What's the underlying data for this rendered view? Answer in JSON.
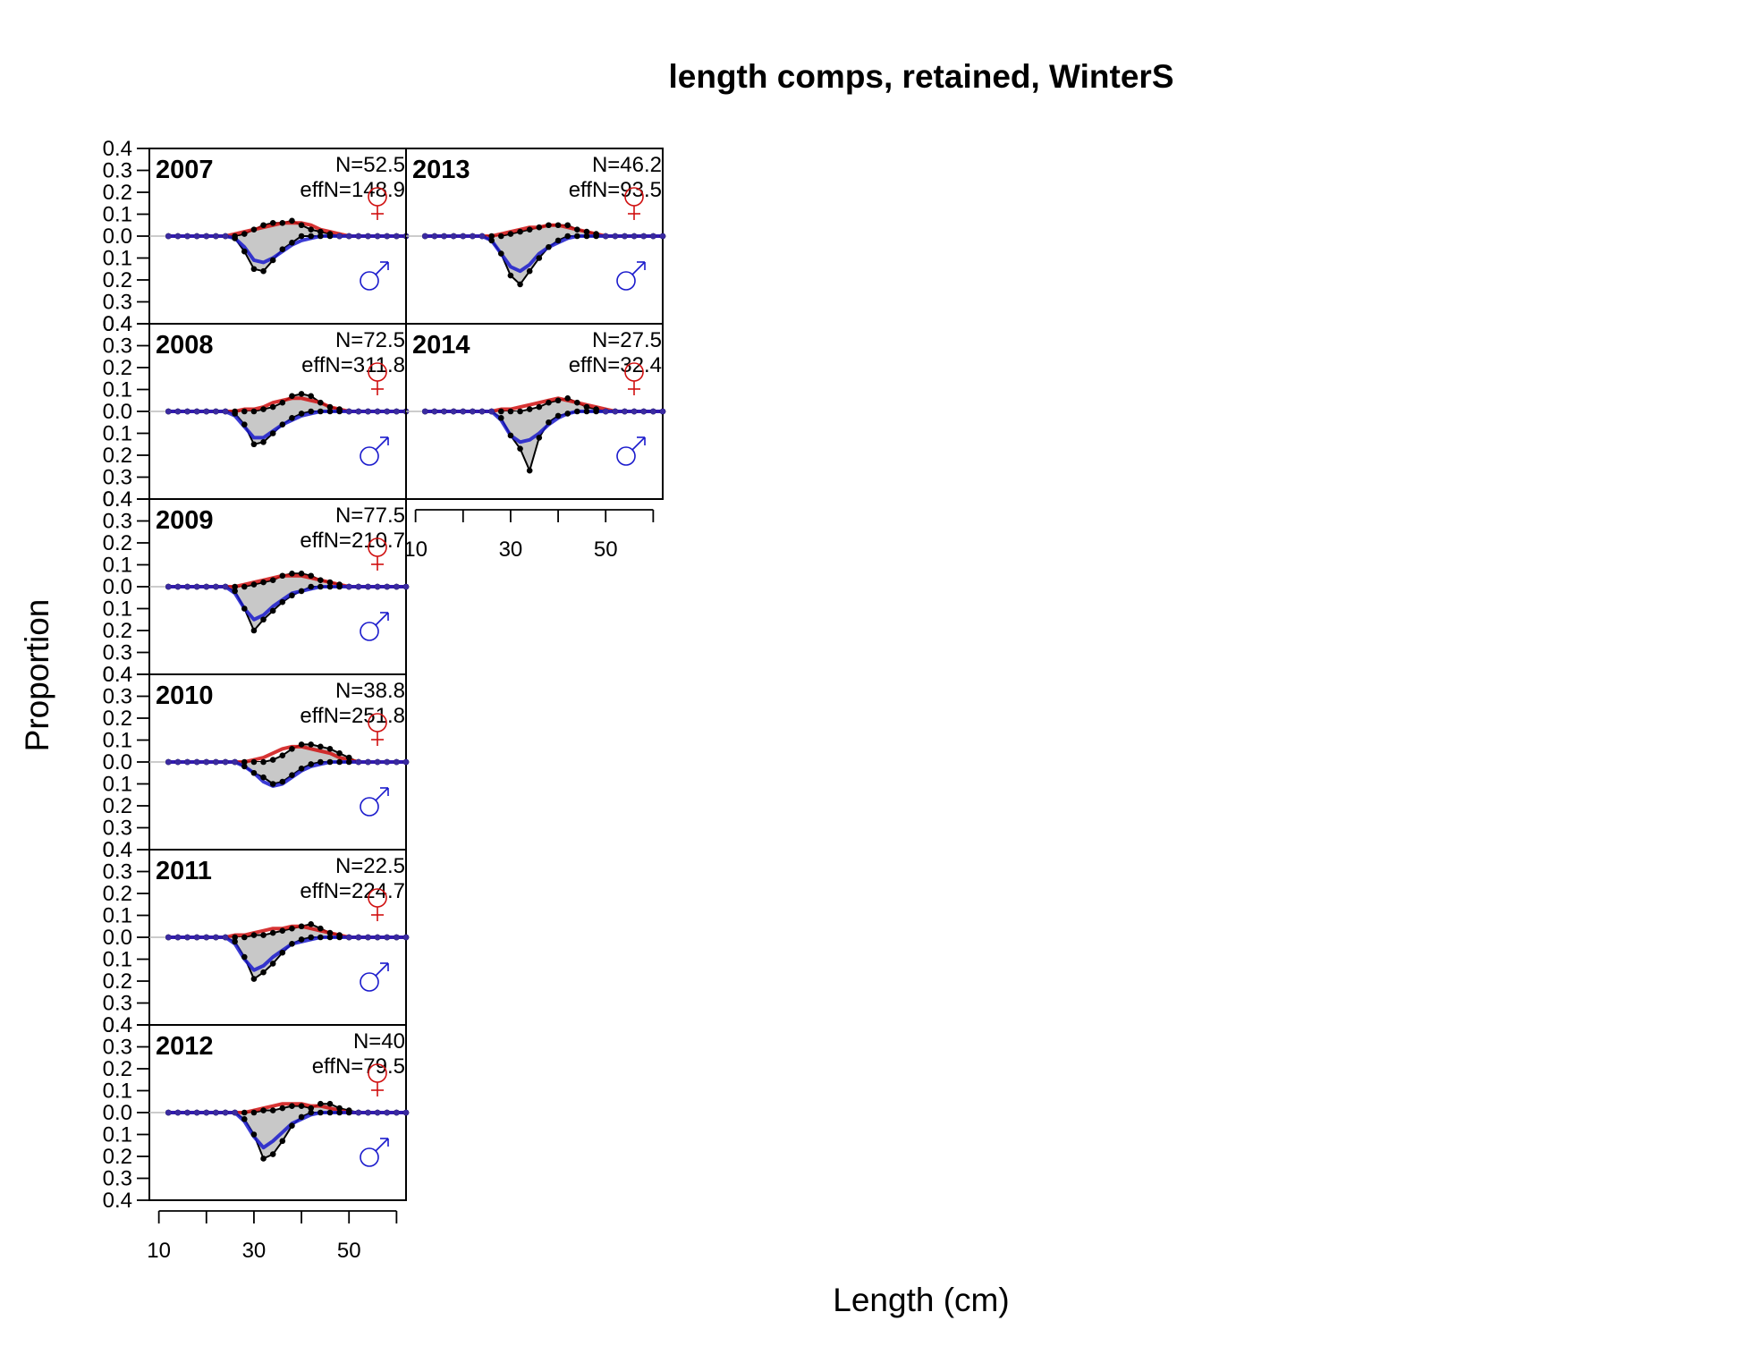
{
  "chart_data": {
    "type": "line",
    "title": "length comps, retained, WinterS",
    "xlabel": "Length (cm)",
    "ylabel": "Proportion",
    "xlim": [
      8,
      62
    ],
    "ylim": [
      -0.4,
      0.4
    ],
    "x_ticks": [
      10,
      20,
      30,
      40,
      50,
      60
    ],
    "x_tick_labels": [
      "10",
      "30",
      "50"
    ],
    "y_tick_labels": [
      "0.4",
      "0.3",
      "0.2",
      "0.1",
      "0.0",
      "0.1",
      "0.2",
      "0.3",
      "0.4"
    ],
    "female_symbol": "♀",
    "male_symbol": "♂",
    "colors": {
      "female": "#d01010",
      "male": "#1a1acc",
      "observed": "#000000",
      "fill": "#c8c8c8",
      "zero_line": "#bbbbbb"
    },
    "lengths": [
      12,
      14,
      16,
      18,
      20,
      22,
      24,
      26,
      28,
      30,
      32,
      34,
      36,
      38,
      40,
      42,
      44,
      46,
      48,
      50,
      52,
      54,
      56,
      58,
      60,
      62
    ],
    "panels": [
      {
        "year": "2007",
        "N": "N=52.5",
        "effN": "effN=148.9",
        "female_obs": [
          0,
          0,
          0,
          0,
          0,
          0,
          0,
          0,
          0.01,
          0.03,
          0.05,
          0.06,
          0.06,
          0.07,
          0.05,
          0.03,
          0.02,
          0.01,
          0,
          0,
          0,
          0,
          0,
          0,
          0,
          0
        ],
        "female_exp": [
          0,
          0,
          0,
          0,
          0,
          0,
          0,
          0.01,
          0.02,
          0.03,
          0.04,
          0.05,
          0.06,
          0.06,
          0.06,
          0.05,
          0.03,
          0.02,
          0.01,
          0,
          0,
          0,
          0,
          0,
          0,
          0
        ],
        "male_obs": [
          0,
          0,
          0,
          0,
          0,
          0,
          0,
          -0.01,
          -0.07,
          -0.15,
          -0.16,
          -0.11,
          -0.06,
          -0.03,
          0,
          0,
          0,
          0,
          0,
          0,
          0,
          0,
          0,
          0,
          0,
          0
        ],
        "male_exp": [
          0,
          0,
          0,
          0,
          0,
          0,
          0,
          -0.01,
          -0.05,
          -0.11,
          -0.12,
          -0.1,
          -0.07,
          -0.04,
          -0.02,
          -0.01,
          0,
          0,
          0,
          0,
          0,
          0,
          0,
          0,
          0,
          0
        ]
      },
      {
        "year": "2008",
        "N": "N=72.5",
        "effN": "effN=311.8",
        "female_obs": [
          0,
          0,
          0,
          0,
          0,
          0,
          0,
          0,
          0,
          0,
          0.01,
          0.02,
          0.04,
          0.07,
          0.08,
          0.07,
          0.04,
          0.02,
          0.01,
          0,
          0,
          0,
          0,
          0,
          0,
          0
        ],
        "female_exp": [
          0,
          0,
          0,
          0,
          0,
          0,
          0,
          0,
          0.01,
          0.01,
          0.02,
          0.04,
          0.05,
          0.06,
          0.06,
          0.05,
          0.04,
          0.02,
          0.01,
          0,
          0,
          0,
          0,
          0,
          0,
          0
        ],
        "male_obs": [
          0,
          0,
          0,
          0,
          0,
          0,
          0,
          -0.01,
          -0.06,
          -0.15,
          -0.14,
          -0.1,
          -0.06,
          -0.03,
          -0.01,
          0,
          0,
          0,
          0,
          0,
          0,
          0,
          0,
          0,
          0,
          0
        ],
        "male_exp": [
          0,
          0,
          0,
          0,
          0,
          0,
          0,
          -0.02,
          -0.07,
          -0.12,
          -0.12,
          -0.09,
          -0.06,
          -0.04,
          -0.02,
          -0.01,
          0,
          0,
          0,
          0,
          0,
          0,
          0,
          0,
          0,
          0
        ]
      },
      {
        "year": "2009",
        "N": "N=77.5",
        "effN": "effN=210.7",
        "female_obs": [
          0,
          0,
          0,
          0,
          0,
          0,
          0,
          0,
          0,
          0.01,
          0.02,
          0.03,
          0.05,
          0.06,
          0.06,
          0.05,
          0.03,
          0.02,
          0.01,
          0,
          0,
          0,
          0,
          0,
          0,
          0
        ],
        "female_exp": [
          0,
          0,
          0,
          0,
          0,
          0,
          0,
          0,
          0.01,
          0.02,
          0.03,
          0.04,
          0.05,
          0.05,
          0.05,
          0.04,
          0.03,
          0.02,
          0.01,
          0,
          0,
          0,
          0,
          0,
          0,
          0
        ],
        "male_obs": [
          0,
          0,
          0,
          0,
          0,
          0,
          0,
          -0.02,
          -0.1,
          -0.2,
          -0.15,
          -0.11,
          -0.07,
          -0.04,
          -0.02,
          0,
          0,
          0,
          0,
          0,
          0,
          0,
          0,
          0,
          0,
          0
        ],
        "male_exp": [
          0,
          0,
          0,
          0,
          0,
          0,
          0,
          -0.03,
          -0.1,
          -0.15,
          -0.13,
          -0.09,
          -0.06,
          -0.03,
          -0.02,
          -0.01,
          0,
          0,
          0,
          0,
          0,
          0,
          0,
          0,
          0,
          0
        ]
      },
      {
        "year": "2010",
        "N": "N=38.8",
        "effN": "effN=251.8",
        "female_obs": [
          0,
          0,
          0,
          0,
          0,
          0,
          0,
          0,
          0,
          0,
          0,
          0.01,
          0.03,
          0.06,
          0.08,
          0.08,
          0.07,
          0.06,
          0.04,
          0.02,
          0,
          0,
          0,
          0,
          0,
          0
        ],
        "female_exp": [
          0,
          0,
          0,
          0,
          0,
          0,
          0,
          0,
          0,
          0.01,
          0.02,
          0.04,
          0.06,
          0.07,
          0.07,
          0.06,
          0.05,
          0.04,
          0.02,
          0.01,
          0,
          0,
          0,
          0,
          0,
          0
        ],
        "male_obs": [
          0,
          0,
          0,
          0,
          0,
          0,
          0,
          0,
          -0.02,
          -0.05,
          -0.07,
          -0.1,
          -0.09,
          -0.06,
          -0.03,
          -0.01,
          0,
          0,
          0,
          0,
          0,
          0,
          0,
          0,
          0,
          0
        ],
        "male_exp": [
          0,
          0,
          0,
          0,
          0,
          0,
          0,
          0,
          -0.02,
          -0.05,
          -0.09,
          -0.11,
          -0.1,
          -0.07,
          -0.04,
          -0.02,
          -0.01,
          0,
          0,
          0,
          0,
          0,
          0,
          0,
          0,
          0
        ]
      },
      {
        "year": "2011",
        "N": "N=22.5",
        "effN": "effN=224.7",
        "female_obs": [
          0,
          0,
          0,
          0,
          0,
          0,
          0,
          0,
          0,
          0.01,
          0.01,
          0.02,
          0.03,
          0.04,
          0.05,
          0.06,
          0.04,
          0.02,
          0.01,
          0,
          0,
          0,
          0,
          0,
          0,
          0
        ],
        "female_exp": [
          0,
          0,
          0,
          0,
          0,
          0,
          0,
          0.01,
          0.01,
          0.02,
          0.03,
          0.04,
          0.04,
          0.05,
          0.05,
          0.04,
          0.03,
          0.02,
          0.01,
          0,
          0,
          0,
          0,
          0,
          0,
          0
        ],
        "male_obs": [
          0,
          0,
          0,
          0,
          0,
          0,
          0,
          -0.02,
          -0.09,
          -0.19,
          -0.16,
          -0.12,
          -0.07,
          -0.03,
          -0.01,
          0,
          0,
          0,
          0,
          0,
          0,
          0,
          0,
          0,
          0,
          0
        ],
        "male_exp": [
          0,
          0,
          0,
          0,
          0,
          0,
          0,
          -0.03,
          -0.1,
          -0.15,
          -0.13,
          -0.09,
          -0.06,
          -0.03,
          -0.02,
          -0.01,
          0,
          0,
          0,
          0,
          0,
          0,
          0,
          0,
          0,
          0
        ]
      },
      {
        "year": "2012",
        "N": "N=40",
        "effN": "effN=79.5",
        "female_obs": [
          0,
          0,
          0,
          0,
          0,
          0,
          0,
          0,
          0,
          0,
          0.01,
          0.01,
          0.02,
          0.03,
          0.03,
          0.02,
          0.04,
          0.04,
          0.02,
          0.01,
          0,
          0,
          0,
          0,
          0,
          0
        ],
        "female_exp": [
          0,
          0,
          0,
          0,
          0,
          0,
          0,
          0,
          0,
          0.01,
          0.02,
          0.03,
          0.04,
          0.04,
          0.04,
          0.03,
          0.03,
          0.02,
          0.01,
          0,
          0,
          0,
          0,
          0,
          0,
          0
        ],
        "male_obs": [
          0,
          0,
          0,
          0,
          0,
          0,
          0,
          0,
          -0.03,
          -0.1,
          -0.21,
          -0.19,
          -0.13,
          -0.06,
          -0.02,
          0,
          0,
          0,
          0,
          0,
          0,
          0,
          0,
          0,
          0,
          0
        ],
        "male_exp": [
          0,
          0,
          0,
          0,
          0,
          0,
          0,
          0,
          -0.04,
          -0.11,
          -0.16,
          -0.13,
          -0.09,
          -0.05,
          -0.03,
          -0.01,
          0,
          0,
          0,
          0,
          0,
          0,
          0,
          0,
          0,
          0
        ]
      },
      {
        "year": "2013",
        "N": "N=46.2",
        "effN": "effN=93.5",
        "female_obs": [
          0,
          0,
          0,
          0,
          0,
          0,
          0,
          0,
          0,
          0.01,
          0.02,
          0.03,
          0.04,
          0.05,
          0.05,
          0.05,
          0.03,
          0.02,
          0.01,
          0,
          0,
          0,
          0,
          0,
          0,
          0
        ],
        "female_exp": [
          0,
          0,
          0,
          0,
          0,
          0,
          0,
          0,
          0.01,
          0.02,
          0.03,
          0.04,
          0.04,
          0.05,
          0.05,
          0.04,
          0.03,
          0.02,
          0.01,
          0,
          0,
          0,
          0,
          0,
          0,
          0
        ],
        "male_obs": [
          0,
          0,
          0,
          0,
          0,
          0,
          0,
          -0.02,
          -0.08,
          -0.18,
          -0.22,
          -0.16,
          -0.1,
          -0.05,
          -0.02,
          0,
          0,
          0,
          0,
          0,
          0,
          0,
          0,
          0,
          0,
          0
        ],
        "male_exp": [
          0,
          0,
          0,
          0,
          0,
          0,
          0,
          -0.02,
          -0.08,
          -0.14,
          -0.16,
          -0.13,
          -0.08,
          -0.05,
          -0.03,
          -0.01,
          0,
          0,
          0,
          0,
          0,
          0,
          0,
          0,
          0,
          0
        ]
      },
      {
        "year": "2014",
        "N": "N=27.5",
        "effN": "effN=32.4",
        "female_obs": [
          0,
          0,
          0,
          0,
          0,
          0,
          0,
          0,
          0,
          0,
          0,
          0.01,
          0.02,
          0.04,
          0.05,
          0.06,
          0.04,
          0.02,
          0.01,
          0,
          0,
          0,
          0,
          0,
          0,
          0
        ],
        "female_exp": [
          0,
          0,
          0,
          0,
          0,
          0,
          0,
          0,
          0.01,
          0.01,
          0.02,
          0.03,
          0.04,
          0.05,
          0.06,
          0.05,
          0.04,
          0.03,
          0.02,
          0.01,
          0,
          0,
          0,
          0,
          0,
          0
        ],
        "male_obs": [
          0,
          0,
          0,
          0,
          0,
          0,
          0,
          0,
          -0.03,
          -0.11,
          -0.17,
          -0.27,
          -0.12,
          -0.05,
          -0.02,
          -0.01,
          0,
          0,
          0,
          0,
          0,
          0,
          0,
          0,
          0,
          0
        ],
        "male_exp": [
          0,
          0,
          0,
          0,
          0,
          0,
          0,
          0,
          -0.04,
          -0.11,
          -0.14,
          -0.13,
          -0.1,
          -0.06,
          -0.03,
          -0.01,
          0,
          0,
          0,
          0,
          0,
          0,
          0,
          0,
          0,
          0
        ]
      }
    ]
  }
}
